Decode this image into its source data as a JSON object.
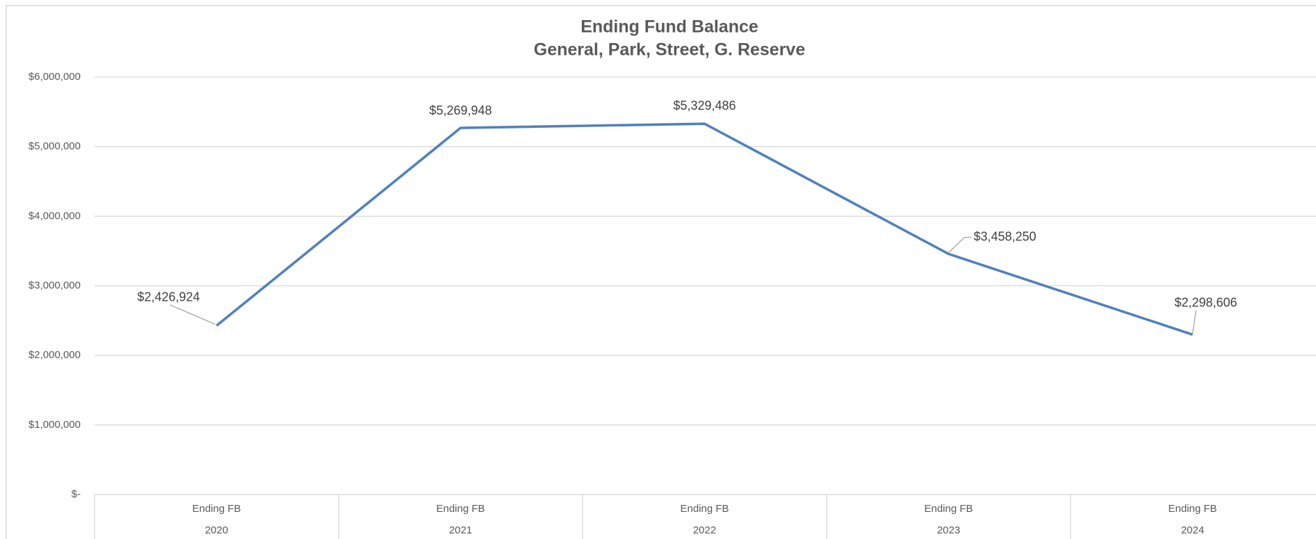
{
  "chart_data": {
    "type": "line",
    "title": "Ending Fund Balance",
    "subtitle": "General, Park, Street, G. Reserve",
    "categories": [
      "2020",
      "2021",
      "2022",
      "2023",
      "2024"
    ],
    "subcategories": [
      "Ending FB",
      "Ending FB",
      "Ending FB",
      "Ending FB",
      "Ending FB"
    ],
    "series": [
      {
        "name": "Ending FB",
        "color": "#4f81bd",
        "values": [
          2426924,
          5269948,
          5329486,
          3458250,
          2298606
        ],
        "value_labels": [
          "$2,426,924",
          "$5,269,948",
          "$5,329,486",
          "$3,458,250",
          "$2,298,606"
        ]
      }
    ],
    "ylim": [
      0,
      6000000
    ],
    "yticks": [
      {
        "value": 0,
        "label": "$-"
      },
      {
        "value": 1000000,
        "label": "$1,000,000"
      },
      {
        "value": 2000000,
        "label": "$2,000,000"
      },
      {
        "value": 3000000,
        "label": "$3,000,000"
      },
      {
        "value": 4000000,
        "label": "$4,000,000"
      },
      {
        "value": 5000000,
        "label": "$5,000,000"
      },
      {
        "value": 6000000,
        "label": "$6,000,000"
      }
    ],
    "grid": true
  }
}
